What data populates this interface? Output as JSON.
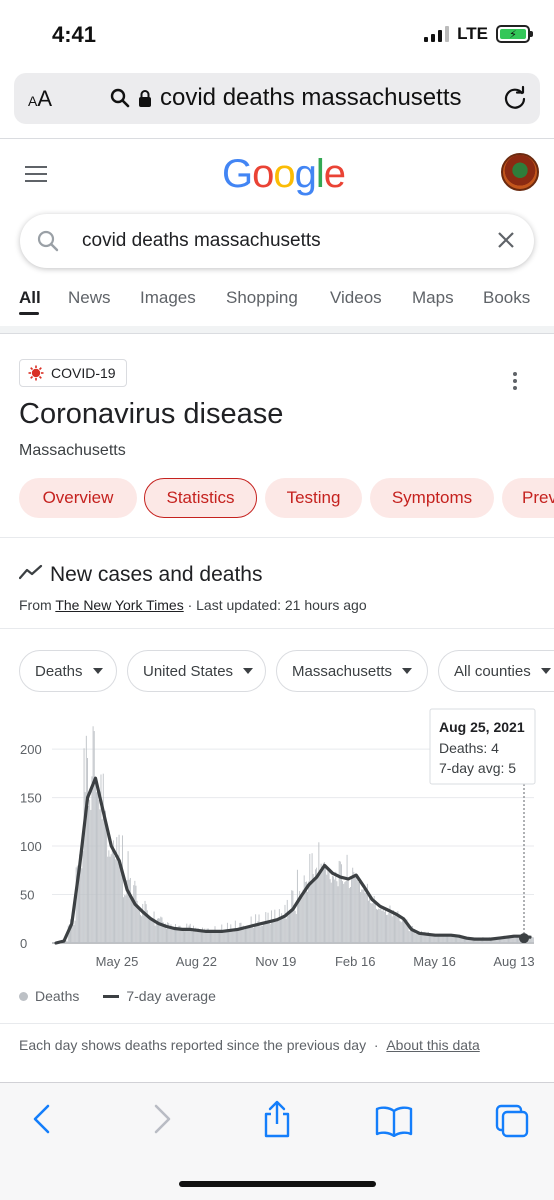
{
  "status_bar": {
    "time": "4:41",
    "network": "LTE"
  },
  "browser": {
    "text_size_label_small": "A",
    "text_size_label_large": "A",
    "url": "covid deaths massachusetts"
  },
  "google": {
    "search_query": "covid deaths massachusetts",
    "tabs": [
      "All",
      "News",
      "Images",
      "Shopping",
      "Videos",
      "Maps",
      "Books"
    ],
    "active_tab": "All"
  },
  "card": {
    "chip": "COVID-19",
    "title": "Coronavirus disease",
    "subtitle": "Massachusetts",
    "pills": [
      "Overview",
      "Statistics",
      "Testing",
      "Symptoms",
      "Prev"
    ],
    "active_pill": "Statistics",
    "section_title": "New cases and deaths",
    "source_prefix": "From ",
    "source_link": "The New York Times",
    "source_suffix": " · Last updated: 21 hours ago",
    "filters": [
      "Deaths",
      "United States",
      "Massachusetts",
      "All counties"
    ],
    "legend": {
      "bars": "Deaths",
      "line": "7-day average"
    },
    "footnote": "Each day shows deaths reported since the previous day",
    "footnote_sep": "·",
    "footnote_link": "About this data",
    "tooltip": {
      "date": "Aug 25, 2021",
      "deaths": "Deaths: 4",
      "avg": "7-day avg: 5"
    }
  },
  "chart_data": {
    "type": "bar",
    "title": "",
    "series": [
      {
        "name": "Deaths",
        "kind": "bar"
      },
      {
        "name": "7-day average",
        "kind": "line"
      }
    ],
    "x_tick_labels": [
      "May 25",
      "Aug 22",
      "Nov 19",
      "Feb 16",
      "May 16",
      "Aug 13"
    ],
    "y_tick_labels": [
      "0",
      "50",
      "100",
      "150",
      "200"
    ],
    "ylim": [
      0,
      230
    ],
    "avg_by_week": [
      0,
      2,
      20,
      80,
      150,
      170,
      135,
      100,
      85,
      55,
      40,
      32,
      25,
      20,
      17,
      15,
      14,
      14,
      13,
      12,
      12,
      12,
      13,
      14,
      16,
      18,
      20,
      22,
      24,
      28,
      35,
      48,
      60,
      68,
      80,
      72,
      68,
      66,
      70,
      58,
      45,
      38,
      34,
      30,
      25,
      14,
      10,
      9,
      8,
      8,
      8,
      7,
      5,
      4,
      4,
      4,
      5,
      6,
      7,
      7,
      6
    ],
    "bar_max_by_week": [
      0,
      3,
      25,
      95,
      215,
      225,
      190,
      150,
      120,
      110,
      65,
      45,
      35,
      28,
      22,
      20,
      18,
      20,
      17,
      16,
      18,
      20,
      22,
      24,
      26,
      30,
      32,
      34,
      38,
      45,
      60,
      80,
      100,
      118,
      105,
      90,
      85,
      92,
      78,
      65,
      50,
      45,
      40,
      35,
      28,
      18,
      14,
      12,
      11,
      10,
      10,
      9,
      7,
      6,
      6,
      6,
      7,
      8,
      9,
      9,
      8
    ],
    "highlight": {
      "date": "Aug 25, 2021",
      "deaths": 4,
      "avg": 5
    },
    "legend_position": "bottom-left"
  }
}
